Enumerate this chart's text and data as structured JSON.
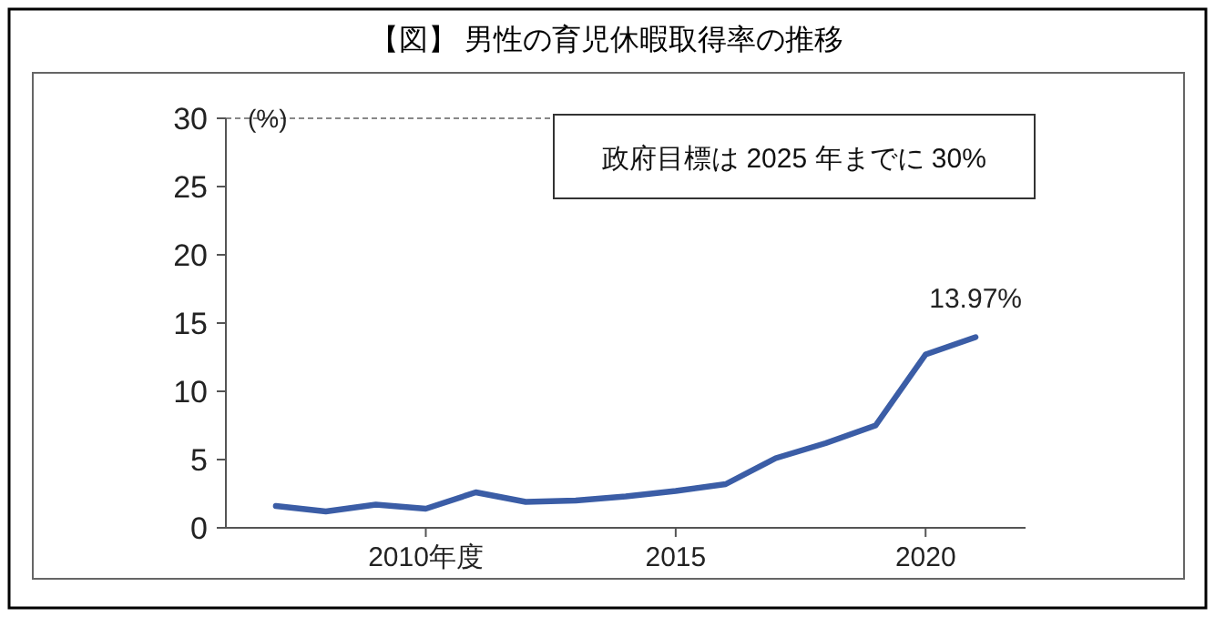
{
  "chart_data": {
    "type": "line",
    "title": "【図】 男性の育児休暇取得率の推移",
    "ylabel": "(%)",
    "x": [
      2007,
      2008,
      2009,
      2010,
      2011,
      2012,
      2013,
      2014,
      2015,
      2016,
      2017,
      2018,
      2019,
      2020,
      2021
    ],
    "series": [
      {
        "color": "#3b5da6",
        "values": [
          1.6,
          1.2,
          1.7,
          1.4,
          2.6,
          1.9,
          2.0,
          2.3,
          2.7,
          3.2,
          5.1,
          6.2,
          7.5,
          12.7,
          13.97
        ]
      }
    ],
    "xlim": [
      2006,
      2022
    ],
    "xticks": [
      {
        "value": 2010,
        "label": "2010年度"
      },
      2015,
      2020
    ],
    "ylim": [
      0,
      30
    ],
    "yticks": [
      0,
      5,
      10,
      15,
      20,
      25,
      30
    ],
    "ref_lines": [
      {
        "axis": "y",
        "value": 30,
        "color": "#888888",
        "line_style": "dashed"
      }
    ],
    "annotations": [
      {
        "text": "13.97%",
        "x": 2021,
        "y": 13.97
      },
      "政府目標は 2025 年までに 30%"
    ],
    "grid": false,
    "marker": "none",
    "line_style": "solid"
  }
}
